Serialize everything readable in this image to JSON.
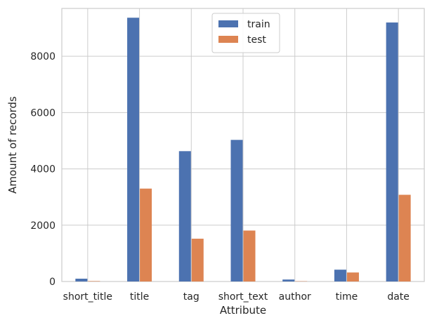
{
  "chart_data": {
    "type": "bar",
    "title": "",
    "xlabel": "Attribute",
    "ylabel": "Amount of records",
    "categories": [
      "short_title",
      "title",
      "tag",
      "short_text",
      "author",
      "time",
      "date"
    ],
    "series": [
      {
        "name": "train",
        "color": "#4c72b0",
        "values": [
          100,
          9370,
          4630,
          5030,
          70,
          420,
          9200
        ]
      },
      {
        "name": "test",
        "color": "#dd8452",
        "values": [
          15,
          3300,
          1520,
          1810,
          10,
          320,
          3080
        ]
      }
    ],
    "ylim": [
      0,
      9700
    ],
    "yticks": [
      0,
      2000,
      4000,
      6000,
      8000
    ],
    "grid": true,
    "legend_position": "top-center"
  }
}
